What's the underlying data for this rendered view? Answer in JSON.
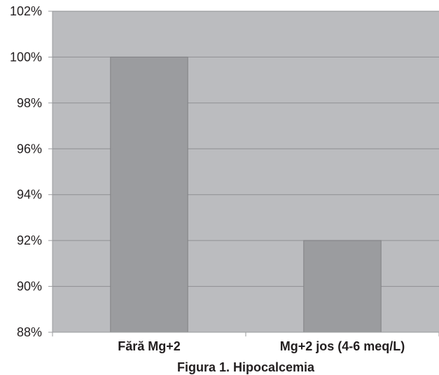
{
  "chart_data": {
    "type": "bar",
    "categories": [
      "Fără Mg+2",
      "Mg+2 jos (4-6 meq/L)"
    ],
    "values": [
      100,
      92
    ],
    "ylim": [
      88,
      102
    ],
    "yticks": [
      88,
      90,
      92,
      94,
      96,
      98,
      100,
      102
    ],
    "ytick_labels": [
      "88%",
      "90%",
      "92%",
      "94%",
      "96%",
      "98%",
      "100%",
      "102%"
    ],
    "caption": "Figura 1. Hipocalcemia",
    "grid": true,
    "legend": "none",
    "colors": {
      "plot_background": "#bbbcbf",
      "bar_fill": "#9b9c9f",
      "bar_stroke": "#808184",
      "gridline": "#8e8f92",
      "axis": "#9a9b9e",
      "text": "#231f20"
    }
  }
}
